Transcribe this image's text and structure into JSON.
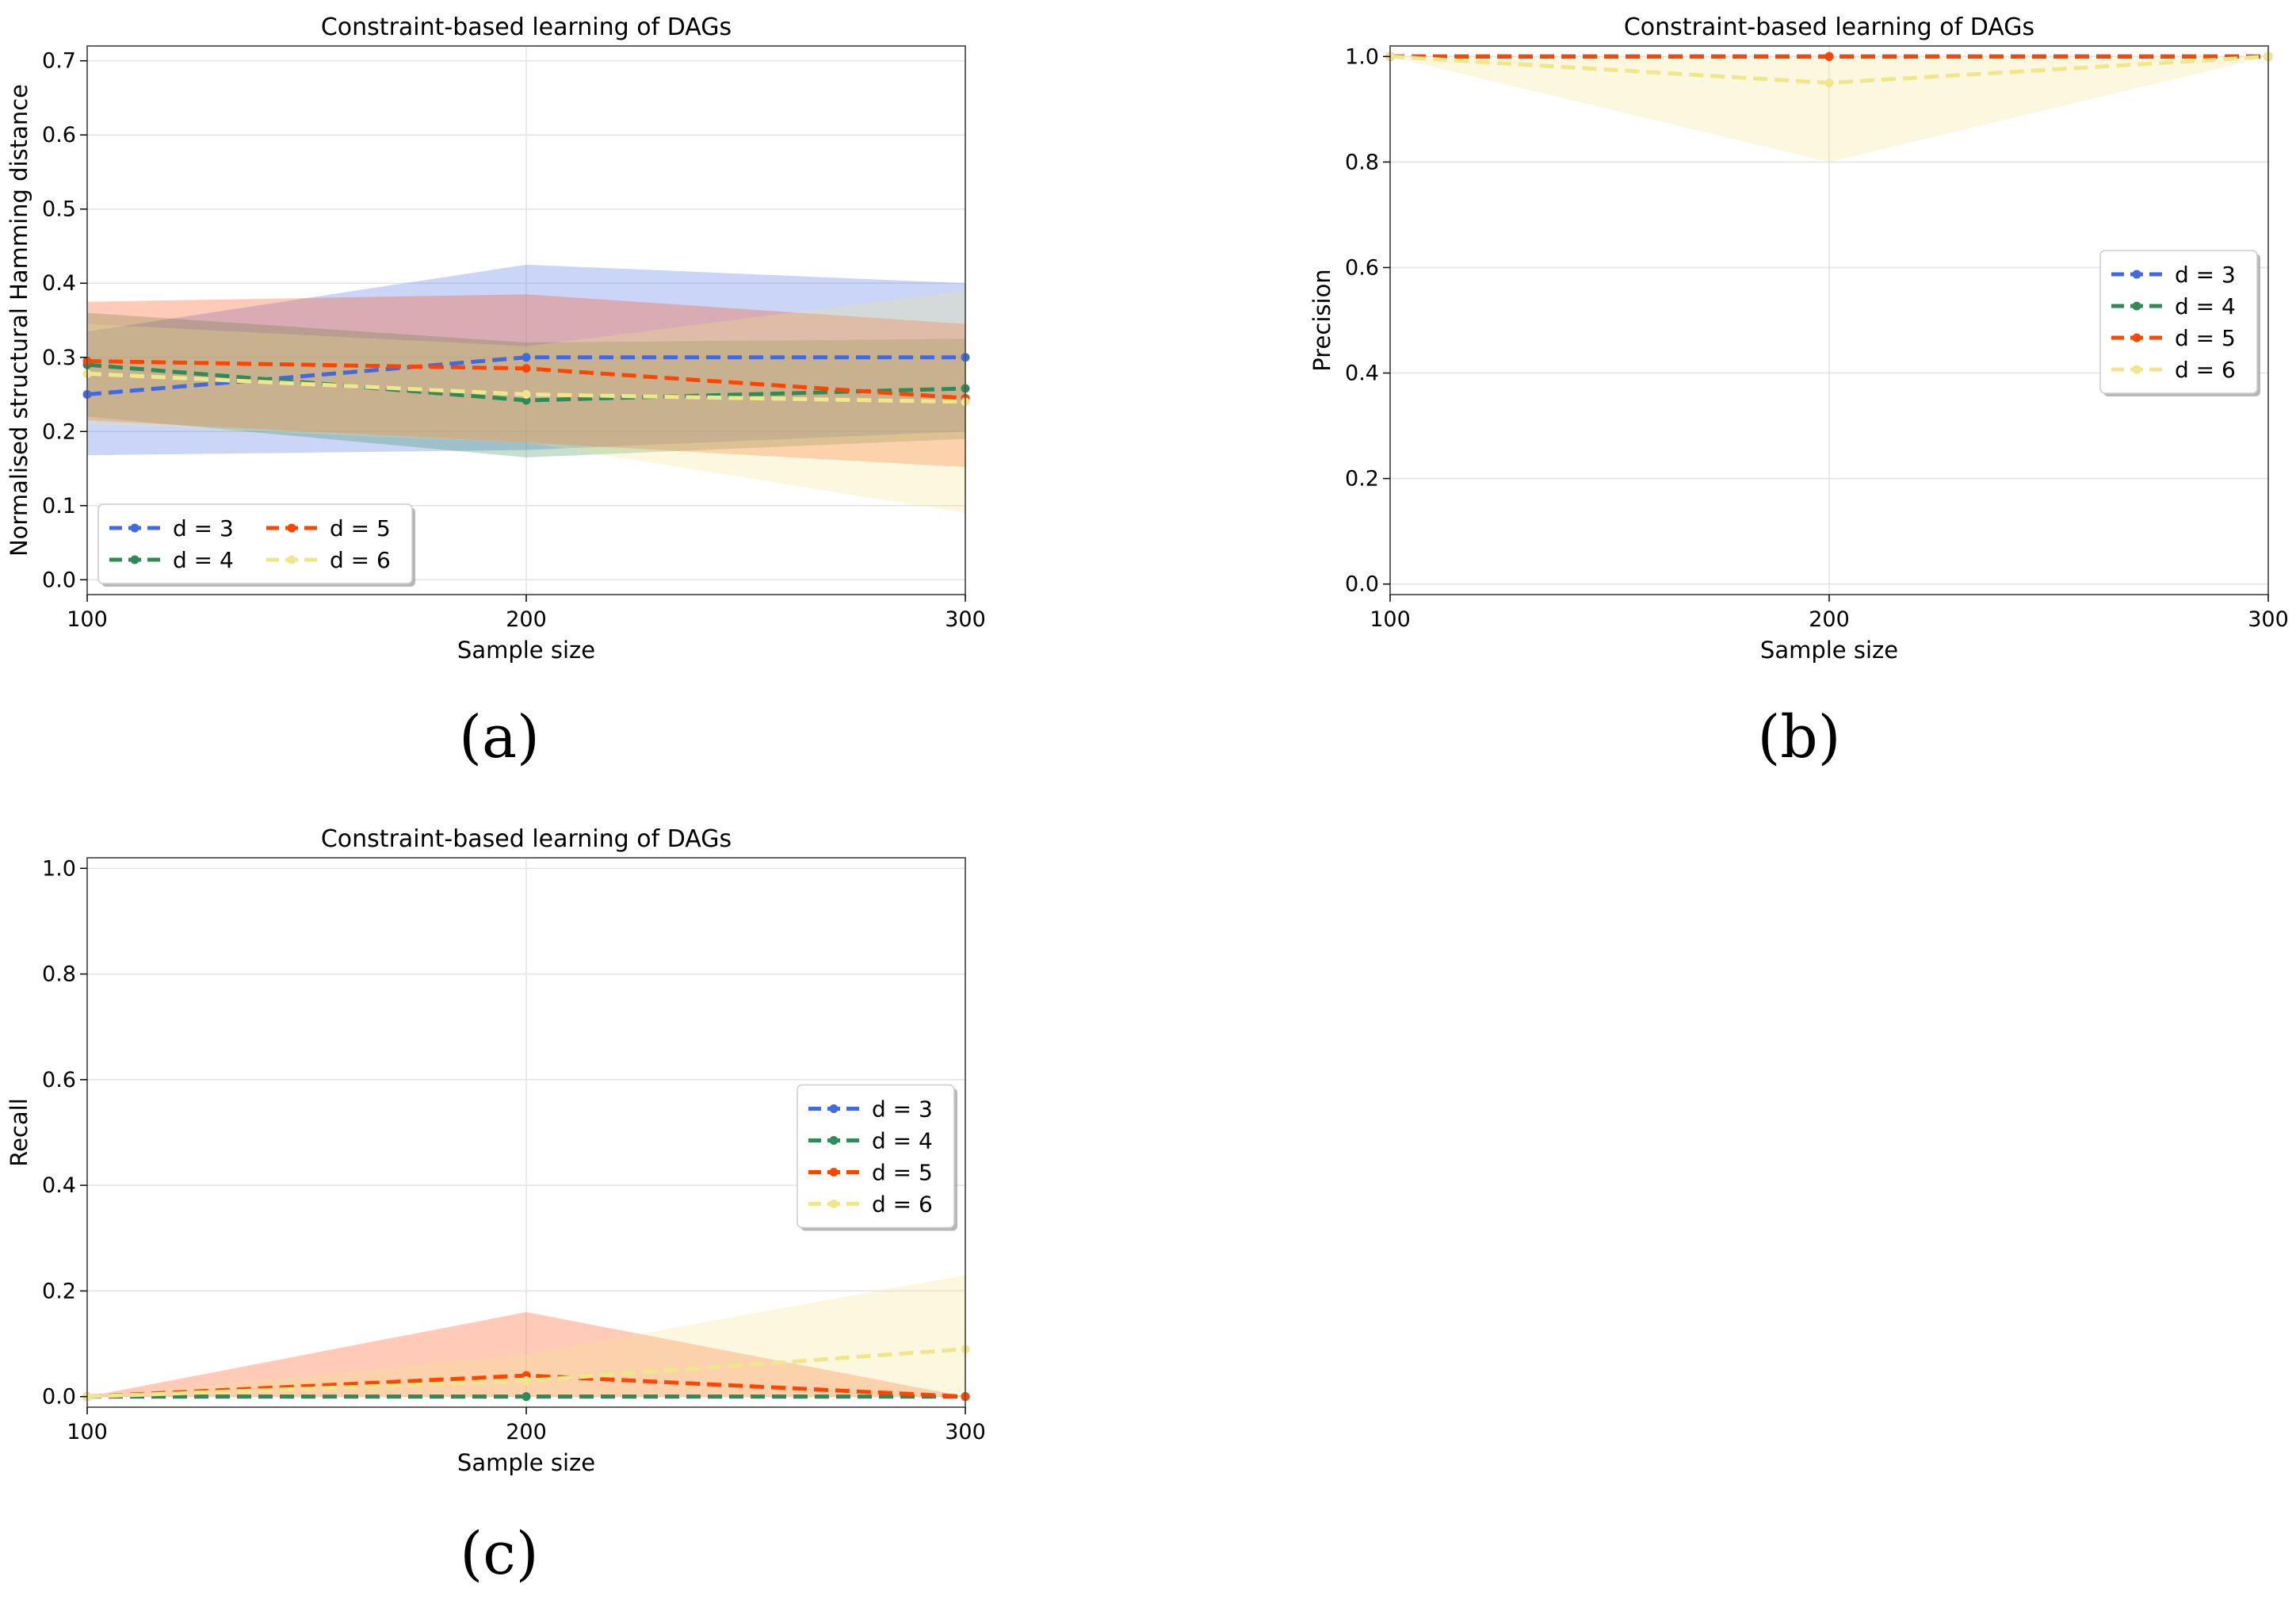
{
  "chart_data": [
    {
      "id": "a",
      "type": "line",
      "panel_label": "(a)",
      "title": "Constraint-based learning of DAGs",
      "xlabel": "Sample size",
      "ylabel": "Normalised structural Hamming distance",
      "x": [
        100,
        200,
        300
      ],
      "xticks": [
        100,
        200,
        300
      ],
      "xlim": [
        100,
        300
      ],
      "yticks": [
        0.0,
        0.1,
        0.2,
        0.3,
        0.4,
        0.5,
        0.6,
        0.7
      ],
      "ytick_labels": [
        "0.0",
        "0.1",
        "0.2",
        "0.3",
        "0.4",
        "0.5",
        "0.6",
        "0.7"
      ],
      "ylim": [
        -0.02,
        0.72
      ],
      "grid": true,
      "legend": {
        "placement": "lower-left",
        "columns": 2
      },
      "series": [
        {
          "name": "d = 3",
          "color": "#4169e1",
          "values": [
            0.25,
            0.3,
            0.3
          ],
          "lower": [
            0.168,
            0.175,
            0.2
          ],
          "upper": [
            0.335,
            0.425,
            0.4
          ]
        },
        {
          "name": "d = 4",
          "color": "#2e8b57",
          "values": [
            0.29,
            0.242,
            0.258
          ],
          "lower": [
            0.22,
            0.165,
            0.19
          ],
          "upper": [
            0.36,
            0.32,
            0.325
          ]
        },
        {
          "name": "d = 5",
          "color": "#ff4500",
          "values": [
            0.295,
            0.285,
            0.245
          ],
          "lower": [
            0.215,
            0.185,
            0.152
          ],
          "upper": [
            0.375,
            0.385,
            0.345
          ]
        },
        {
          "name": "d = 6",
          "color": "#f0e68c",
          "values": [
            0.278,
            0.25,
            0.24
          ],
          "lower": [
            0.21,
            0.185,
            0.09
          ],
          "upper": [
            0.345,
            0.315,
            0.39
          ]
        }
      ]
    },
    {
      "id": "b",
      "type": "line",
      "panel_label": "(b)",
      "title": "Constraint-based learning of DAGs",
      "xlabel": "Sample size",
      "ylabel": "Precision",
      "x": [
        100,
        200,
        300
      ],
      "xticks": [
        100,
        200,
        300
      ],
      "xlim": [
        100,
        300
      ],
      "yticks": [
        0.0,
        0.2,
        0.4,
        0.6,
        0.8,
        1.0
      ],
      "ytick_labels": [
        "0.0",
        "0.2",
        "0.4",
        "0.6",
        "0.8",
        "1.0"
      ],
      "ylim": [
        -0.02,
        1.02
      ],
      "grid": true,
      "legend": {
        "placement": "center-right",
        "columns": 1
      },
      "series": [
        {
          "name": "d = 3",
          "color": "#4169e1",
          "values": [
            1.0,
            1.0,
            1.0
          ],
          "lower": [
            1.0,
            1.0,
            1.0
          ],
          "upper": [
            1.0,
            1.0,
            1.0
          ]
        },
        {
          "name": "d = 4",
          "color": "#2e8b57",
          "values": [
            1.0,
            1.0,
            1.0
          ],
          "lower": [
            1.0,
            1.0,
            1.0
          ],
          "upper": [
            1.0,
            1.0,
            1.0
          ]
        },
        {
          "name": "d = 5",
          "color": "#ff4500",
          "values": [
            1.0,
            1.0,
            1.0
          ],
          "lower": [
            1.0,
            1.0,
            1.0
          ],
          "upper": [
            1.0,
            1.0,
            1.0
          ]
        },
        {
          "name": "d = 6",
          "color": "#f0e68c",
          "values": [
            1.0,
            0.95,
            1.0
          ],
          "lower": [
            1.0,
            0.8,
            1.0
          ],
          "upper": [
            1.0,
            1.0,
            1.0
          ]
        }
      ]
    },
    {
      "id": "c",
      "type": "line",
      "panel_label": "(c)",
      "title": "Constraint-based learning of DAGs",
      "xlabel": "Sample size",
      "ylabel": "Recall",
      "x": [
        100,
        200,
        300
      ],
      "xticks": [
        100,
        200,
        300
      ],
      "xlim": [
        100,
        300
      ],
      "yticks": [
        0.0,
        0.2,
        0.4,
        0.6,
        0.8,
        1.0
      ],
      "ytick_labels": [
        "0.0",
        "0.2",
        "0.4",
        "0.6",
        "0.8",
        "1.0"
      ],
      "ylim": [
        -0.02,
        1.02
      ],
      "grid": true,
      "legend": {
        "placement": "center-right",
        "columns": 1
      },
      "series": [
        {
          "name": "d = 3",
          "color": "#4169e1",
          "values": [
            0.0,
            0.0,
            0.0
          ],
          "lower": [
            0.0,
            0.0,
            0.0
          ],
          "upper": [
            0.0,
            0.0,
            0.0
          ]
        },
        {
          "name": "d = 4",
          "color": "#2e8b57",
          "values": [
            0.0,
            0.0,
            0.0
          ],
          "lower": [
            0.0,
            0.0,
            0.0
          ],
          "upper": [
            0.0,
            0.0,
            0.0
          ]
        },
        {
          "name": "d = 5",
          "color": "#ff4500",
          "values": [
            0.0,
            0.04,
            0.0
          ],
          "lower": [
            0.0,
            0.0,
            0.0
          ],
          "upper": [
            0.0,
            0.16,
            0.0
          ]
        },
        {
          "name": "d = 6",
          "color": "#f0e68c",
          "values": [
            0.0,
            0.03,
            0.09
          ],
          "lower": [
            0.0,
            0.0,
            0.0
          ],
          "upper": [
            0.0,
            0.08,
            0.23
          ]
        }
      ]
    }
  ]
}
